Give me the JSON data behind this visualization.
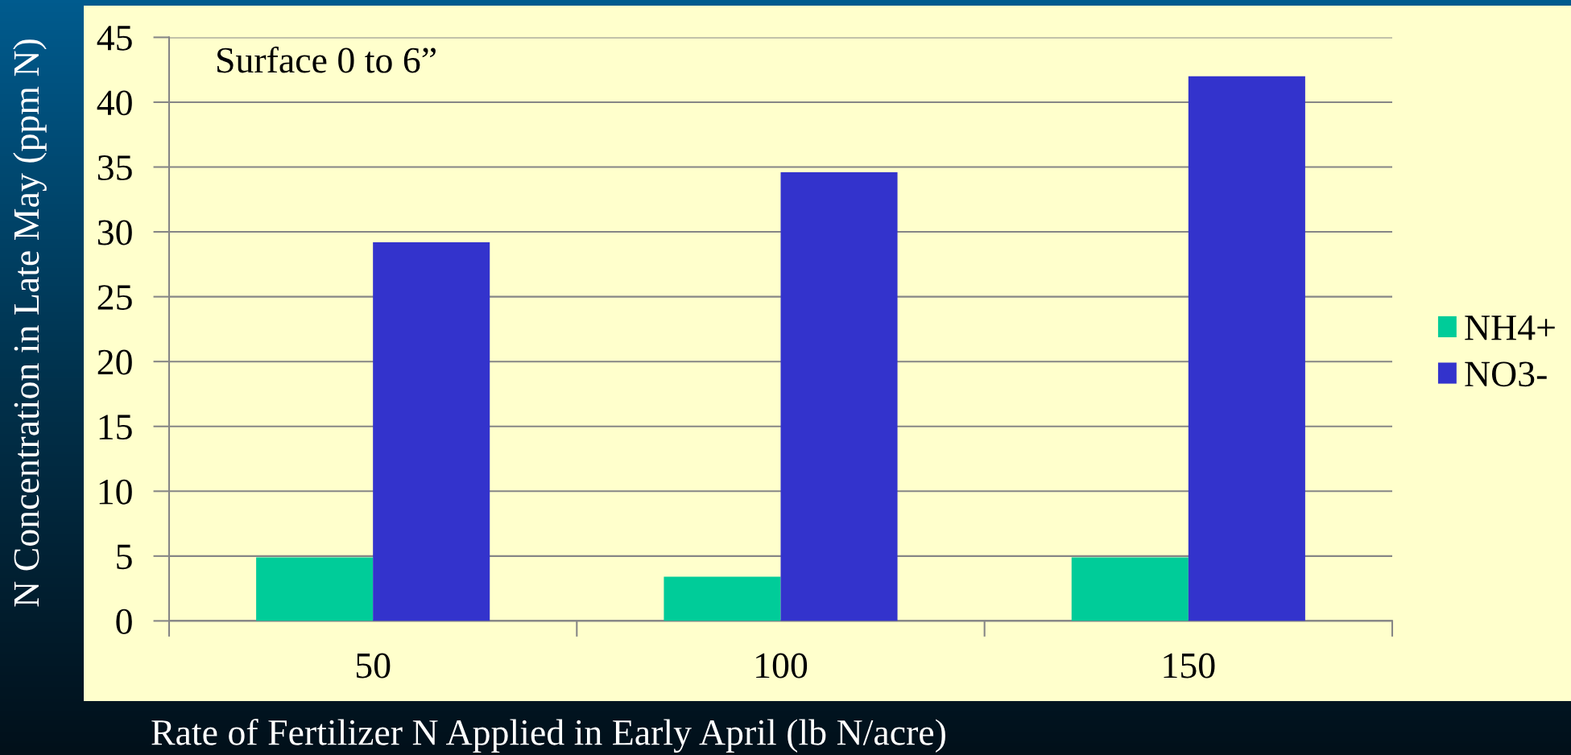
{
  "chart_data": {
    "type": "bar",
    "categories": [
      "50",
      "100",
      "150"
    ],
    "series": [
      {
        "name": "NH4+",
        "color": "#00cc99",
        "values": [
          4.9,
          3.4,
          4.9
        ]
      },
      {
        "name": "NO3-",
        "color": "#3333cc",
        "values": [
          29.2,
          34.6,
          42.0
        ]
      }
    ],
    "xlabel": "Rate of Fertilizer N Applied in Early April (lb N/acre)",
    "ylabel": "N Concentration in Late May (ppm N)",
    "annotations": [
      "Surface 0 to 6”"
    ],
    "ylim": [
      0,
      45
    ],
    "yticks": [
      0,
      5,
      10,
      15,
      20,
      25,
      30,
      35,
      40,
      45
    ],
    "grid": "y",
    "legend": "right"
  }
}
